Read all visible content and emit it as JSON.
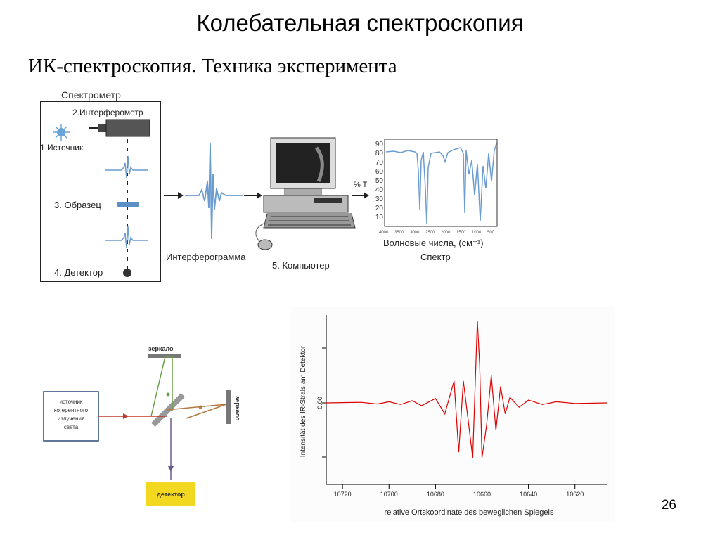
{
  "slide": {
    "title": "Колебательная спектроскопия",
    "subtitle": "ИК-спектроскопия. Техника эксперимента",
    "page_number": "26"
  },
  "spectrometer_figure": {
    "box_label": "Спектрометр",
    "interferometer_label": "2.Интерферометр",
    "source_label": "1.Источник",
    "sample_label": "3. Образец",
    "detector_label": "4. Детектор",
    "interferogram_label": "Интерферограмма",
    "computer_label": "5. Компьютер",
    "spectrum_ylabel": "% T",
    "spectrum_yticks": [
      "90",
      "80",
      "70",
      "60",
      "50",
      "40",
      "30",
      "20",
      "10"
    ],
    "spectrum_xticks": [
      "4000",
      "3500",
      "3000",
      "2500",
      "2000",
      "1500",
      "1000",
      "500"
    ],
    "spectrum_xlabel": "Волновые числа, (см⁻¹)",
    "spectrum_caption": "Спектр",
    "accent_color": "#6a9ccf"
  },
  "michelson_figure": {
    "mirror_top_label": "зеркало",
    "mirror_right_label": "зеркало",
    "source_label_lines": [
      "источник",
      "когерентного",
      "излучения",
      "света"
    ],
    "detector_label": "детектор",
    "detector_color": "#f2d81e"
  },
  "chart_data": {
    "type": "line",
    "ylabel": "Intensität des IR-Strals am Detektor",
    "xlabel": "relative Ortskoordinate des beweglichen Spiegels",
    "y_tick_label": "0.00",
    "categories": [
      "10720",
      "10700",
      "10680",
      "10660",
      "10640",
      "10620"
    ],
    "x_reversed": true,
    "xlim": [
      10727,
      10606
    ],
    "series": [
      {
        "color": "#dd0000",
        "x": [
          10727,
          10712,
          10705,
          10700,
          10695,
          10690,
          10686,
          10680,
          10676,
          10672,
          10670,
          10668,
          10666,
          10664,
          10662,
          10661,
          10660,
          10658,
          10656,
          10654,
          10652,
          10650,
          10648,
          10644,
          10640,
          10634,
          10628,
          10620,
          10606
        ],
        "y": [
          0.0,
          0.01,
          -0.02,
          0.02,
          -0.03,
          0.04,
          -0.05,
          0.08,
          -0.2,
          0.4,
          -0.9,
          0.4,
          -0.3,
          -1.0,
          1.5,
          0.7,
          -1.0,
          -0.4,
          0.5,
          -0.5,
          0.3,
          -0.2,
          0.1,
          -0.08,
          0.05,
          -0.03,
          0.02,
          -0.01,
          0.0
        ]
      }
    ]
  }
}
